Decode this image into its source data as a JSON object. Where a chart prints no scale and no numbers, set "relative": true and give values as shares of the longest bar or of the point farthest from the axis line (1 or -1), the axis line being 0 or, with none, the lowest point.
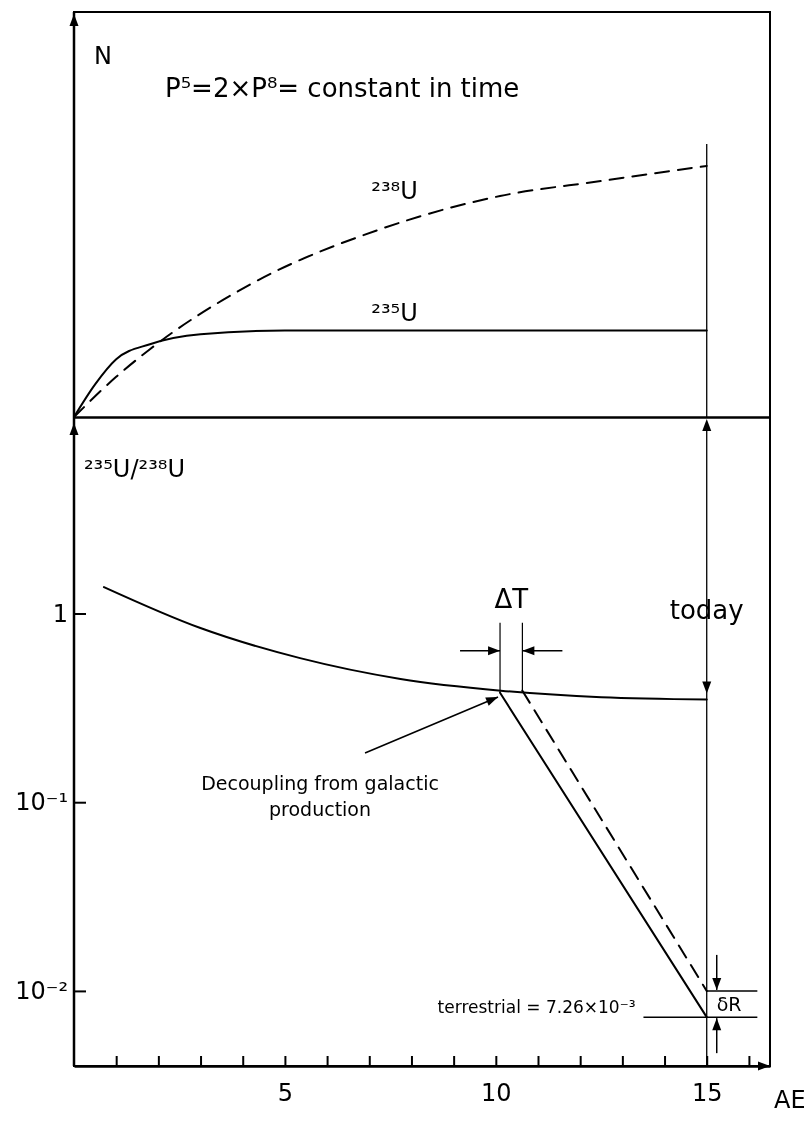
{
  "chart_data": [
    {
      "type": "line",
      "relative": true,
      "ylabel": "N",
      "xlim": [
        0,
        16.5
      ],
      "annotations": [
        "P⁵=2×P⁸= constant in time"
      ],
      "ref_lines": [
        {
          "axis": "x",
          "value": 15
        }
      ],
      "series": [
        {
          "name": "²³⁸U",
          "color": "#000000",
          "line_style": "dashed",
          "x": [
            0,
            1,
            1.8,
            4.2,
            7.3,
            10.1,
            12.5,
            15
          ],
          "values": [
            0,
            0.16,
            0.27,
            0.53,
            0.75,
            0.88,
            0.94,
            1
          ]
        },
        {
          "name": "²³⁵U",
          "color": "#000000",
          "line_style": "solid",
          "x": [
            0,
            0.5,
            1,
            1.8,
            3,
            5,
            10,
            15
          ],
          "values": [
            0,
            0.13,
            0.23,
            0.29,
            0.33,
            0.344,
            0.344,
            0.344
          ]
        }
      ]
    },
    {
      "type": "line",
      "log": true,
      "ylabel": "²³⁵U/²³⁸U",
      "xlabel": "AE",
      "xlim": [
        0,
        16.5
      ],
      "ylim": [
        0.004,
        11
      ],
      "xticks": [
        {
          "value": 1,
          "label": null
        },
        {
          "value": 2,
          "label": null
        },
        {
          "value": 3,
          "label": null
        },
        {
          "value": 4,
          "label": null
        },
        5,
        {
          "value": 6,
          "label": null
        },
        {
          "value": 7,
          "label": null
        },
        {
          "value": 8,
          "label": null
        },
        {
          "value": 9,
          "label": null
        },
        10,
        {
          "value": 11,
          "label": null
        },
        {
          "value": 12,
          "label": null
        },
        {
          "value": 13,
          "label": null
        },
        {
          "value": 14,
          "label": null
        },
        15,
        {
          "value": 16,
          "label": null
        }
      ],
      "yticks": [
        1,
        {
          "value": 0.1,
          "label": "10⁻¹"
        },
        {
          "value": 0.01,
          "label": "10⁻²"
        }
      ],
      "annotations": [
        {
          "text": "ΔT",
          "x": 10.1,
          "y": 0.38
        },
        {
          "text": "Decoupling from galactic production",
          "x": 10.1,
          "y": 0.37
        },
        "δR"
      ],
      "ref_lines": [
        {
          "axis": "x",
          "value": 15,
          "label": "today"
        },
        {
          "axis": "y",
          "value": 0.00726,
          "label": "terrestrial = 7.26×10⁻³"
        }
      ],
      "series": [
        {
          "color": "#000000",
          "line_style": "solid",
          "x": [
            0.71,
            2.98,
            5.36,
            7.74,
            10.12,
            12.5,
            15
          ],
          "values": [
            1.38,
            0.84,
            0.58,
            0.45,
            0.39,
            0.36,
            0.35
          ]
        },
        {
          "color": "#000000",
          "line_style": "solid",
          "x": [
            10.1,
            15
          ],
          "values": [
            0.38,
            0.00726
          ]
        },
        {
          "color": "#000000",
          "line_style": "dashed",
          "x": [
            10.63,
            15
          ],
          "values": [
            0.39,
            0.01
          ]
        }
      ]
    }
  ]
}
